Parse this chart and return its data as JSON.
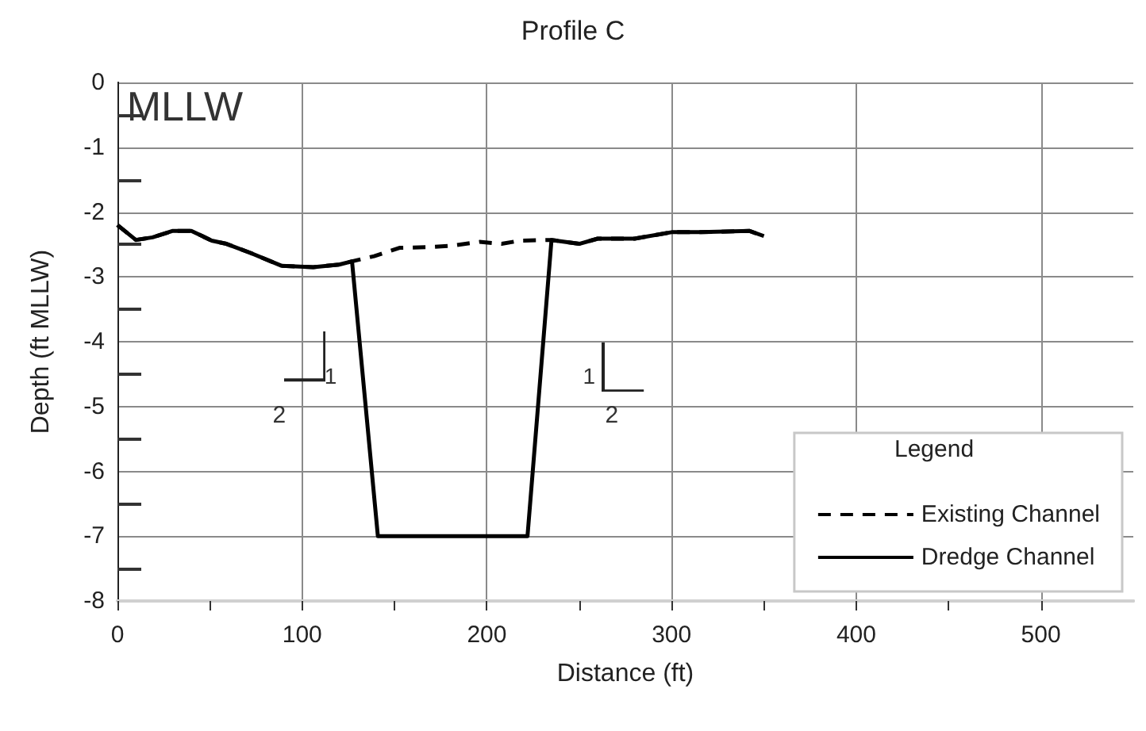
{
  "chart_data": {
    "type": "line",
    "title": "Profile C",
    "xlabel": "Distance (ft)",
    "ylabel": "Depth (ft MLLW)",
    "legend_title": "Legend",
    "annotations": [
      "MLLW",
      "1",
      "2",
      "1",
      "2"
    ],
    "series": [
      {
        "name": "Existing Channel",
        "color": "#000000",
        "line_style": "dashed",
        "x": [
          0,
          10,
          19,
          30,
          40,
          51,
          59,
          72,
          89,
          106,
          120,
          127,
          139,
          153,
          170,
          181,
          196,
          208,
          218,
          235,
          250,
          260,
          280,
          300,
          316,
          342,
          350
        ],
        "values": [
          -2.2,
          -2.43,
          -2.39,
          -2.29,
          -2.29,
          -2.44,
          -2.49,
          -2.63,
          -2.83,
          -2.85,
          -2.81,
          -2.76,
          -2.68,
          -2.55,
          -2.54,
          -2.52,
          -2.46,
          -2.49,
          -2.44,
          -2.43,
          -2.49,
          -2.41,
          -2.41,
          -2.31,
          -2.31,
          -2.29,
          -2.37
        ]
      },
      {
        "name": "Dredge Channel",
        "color": "#000000",
        "line_style": "solid",
        "x": [
          0,
          10,
          19,
          30,
          40,
          51,
          59,
          72,
          89,
          106,
          120,
          127,
          141,
          222,
          235,
          250,
          260,
          280,
          300,
          316,
          342,
          350
        ],
        "values": [
          -2.2,
          -2.43,
          -2.39,
          -2.29,
          -2.29,
          -2.44,
          -2.49,
          -2.63,
          -2.83,
          -2.85,
          -2.81,
          -2.76,
          -7,
          -7,
          -2.43,
          -2.49,
          -2.41,
          -2.41,
          -2.31,
          -2.31,
          -2.29,
          -2.37
        ]
      }
    ],
    "xlim": [
      0,
      550
    ],
    "xticks": [
      0,
      {
        "value": 50,
        "label": null
      },
      100,
      {
        "value": 150,
        "label": null
      },
      200,
      {
        "value": 250,
        "label": null
      },
      300,
      {
        "value": 350,
        "label": null
      },
      400,
      {
        "value": 450,
        "label": null
      },
      500
    ],
    "ylim": [
      -8,
      0
    ],
    "yticks": [
      -8,
      {
        "value": -7.5,
        "label": null
      },
      -7,
      {
        "value": -6.5,
        "label": null
      },
      -6,
      {
        "value": -5.5,
        "label": null
      },
      -5,
      {
        "value": -4.5,
        "label": null
      },
      -4,
      {
        "value": -3.5,
        "label": null
      },
      -3,
      {
        "value": -2.5,
        "label": null
      },
      -2,
      {
        "value": -1.5,
        "label": null
      },
      -1,
      {
        "value": -0.5,
        "label": null
      },
      0
    ],
    "grid": true,
    "legend": "bottom right",
    "marker": "none"
  }
}
